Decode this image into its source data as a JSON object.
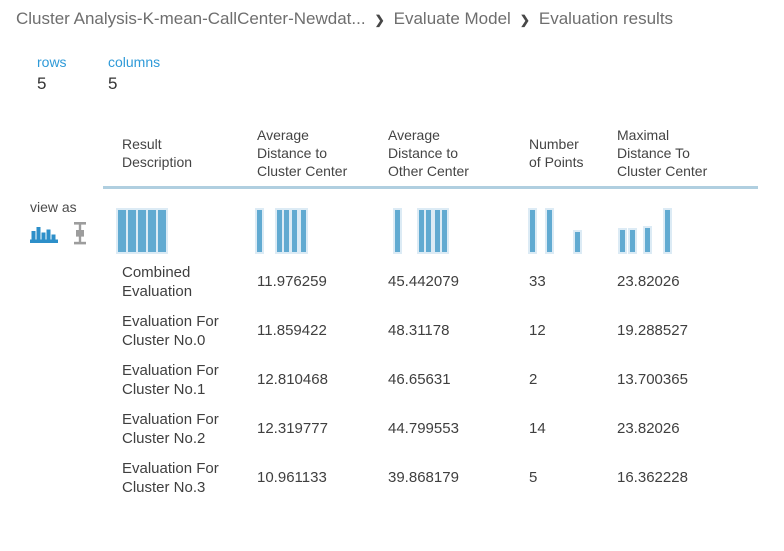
{
  "colors": {
    "accent_blue": "#2f9ad8",
    "bar_fill": "#61aad1",
    "bar_halo": "#dcebf5",
    "header_rule": "#b0cfe0",
    "icon_blue": "#2d8fc9",
    "icon_gray": "#9d9d9d"
  },
  "breadcrumb": {
    "separator": "❯",
    "items": [
      "Cluster Analysis-K-mean-CallCenter-Newdat...",
      "Evaluate Model",
      "Evaluation results"
    ]
  },
  "stats": {
    "rows": {
      "label": "rows",
      "value": "5"
    },
    "columns": {
      "label": "columns",
      "value": "5"
    }
  },
  "view_as": {
    "label": "view as",
    "icons": [
      {
        "name": "histogram-view-icon",
        "selected": true
      },
      {
        "name": "boxplot-view-icon",
        "selected": false
      }
    ]
  },
  "table": {
    "headers": [
      "Result\nDescription",
      "Average\nDistance to\nCluster Center",
      "Average\nDistance to\nOther Center",
      "Number\nof Points",
      "Maximal\nDistance To\nCluster Center"
    ],
    "histograms": [
      {
        "bars": [
          {
            "x": 0,
            "w": 8,
            "h": 1
          },
          {
            "x": 10,
            "w": 8,
            "h": 1
          },
          {
            "x": 20,
            "w": 8,
            "h": 1
          },
          {
            "x": 30,
            "w": 8,
            "h": 1
          },
          {
            "x": 40,
            "w": 8,
            "h": 1
          }
        ]
      },
      {
        "bars": [
          {
            "x": 0,
            "w": 5,
            "h": 1
          },
          {
            "x": 20,
            "w": 5,
            "h": 1
          },
          {
            "x": 27,
            "w": 5,
            "h": 1
          },
          {
            "x": 35,
            "w": 5,
            "h": 1
          },
          {
            "x": 44,
            "w": 5,
            "h": 1
          }
        ]
      },
      {
        "bars": [
          {
            "x": 7,
            "w": 5,
            "h": 1
          },
          {
            "x": 31,
            "w": 5,
            "h": 1
          },
          {
            "x": 38,
            "w": 5,
            "h": 1
          },
          {
            "x": 47,
            "w": 5,
            "h": 1
          },
          {
            "x": 54,
            "w": 5,
            "h": 1
          }
        ]
      },
      {
        "bars": [
          {
            "x": 1,
            "w": 5,
            "h": 1
          },
          {
            "x": 18,
            "w": 5,
            "h": 1
          },
          {
            "x": 46,
            "w": 5,
            "h": 0.47
          }
        ]
      },
      {
        "bars": [
          {
            "x": 3,
            "w": 5,
            "h": 0.52
          },
          {
            "x": 13,
            "w": 5,
            "h": 0.52
          },
          {
            "x": 28,
            "w": 5,
            "h": 0.57
          },
          {
            "x": 48,
            "w": 5,
            "h": 1
          }
        ]
      }
    ],
    "rows": [
      {
        "description": "Combined\nEvaluation",
        "values": [
          "11.976259",
          "45.442079",
          "33",
          "23.82026"
        ]
      },
      {
        "description": "Evaluation For\nCluster No.0",
        "values": [
          "11.859422",
          "48.31178",
          "12",
          "19.288527"
        ]
      },
      {
        "description": "Evaluation For\nCluster No.1",
        "values": [
          "12.810468",
          "46.65631",
          "2",
          "13.700365"
        ]
      },
      {
        "description": "Evaluation For\nCluster No.2",
        "values": [
          "12.319777",
          "44.799553",
          "14",
          "23.82026"
        ]
      },
      {
        "description": "Evaluation For\nCluster No.3",
        "values": [
          "10.961133",
          "39.868179",
          "5",
          "16.362228"
        ]
      }
    ]
  }
}
